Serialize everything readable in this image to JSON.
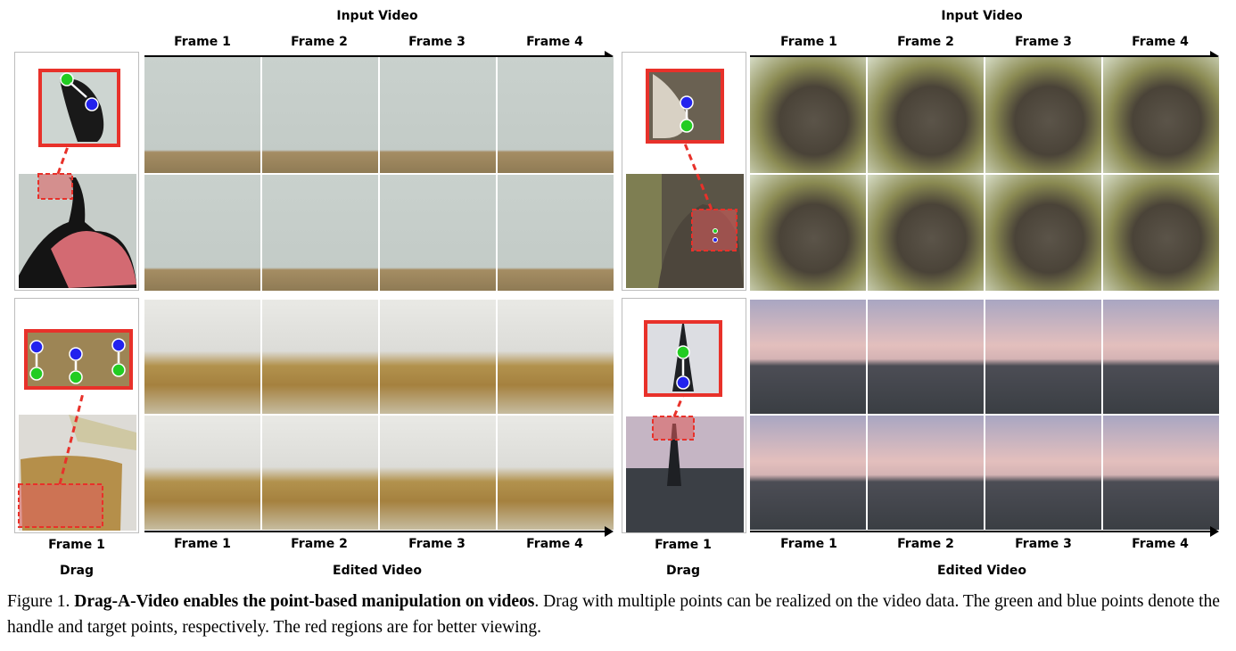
{
  "left": {
    "top_label": "Input Video",
    "bottom_label": "Edited Video",
    "frame_labels": [
      "Frame 1",
      "Frame 2",
      "Frame 3",
      "Frame 4"
    ],
    "drag_frame_label": "Frame 1",
    "drag_label": "Drag"
  },
  "right": {
    "top_label": "Input Video",
    "bottom_label": "Edited Video",
    "frame_labels": [
      "Frame 1",
      "Frame 2",
      "Frame 3",
      "Frame 4"
    ],
    "drag_frame_label": "Frame 1",
    "drag_label": "Drag"
  },
  "caption": {
    "prefix": "Figure 1. ",
    "bold": "Drag-A-Video enables the point-based manipulation on videos",
    "rest": ". Drag with multiple points can be realized on the video data. The green and blue points denote the handle and target points, respectively. The red regions are for better viewing."
  },
  "colors": {
    "handle_point": "#22cc22",
    "target_point": "#2222ee",
    "highlight": "#e8312a"
  }
}
